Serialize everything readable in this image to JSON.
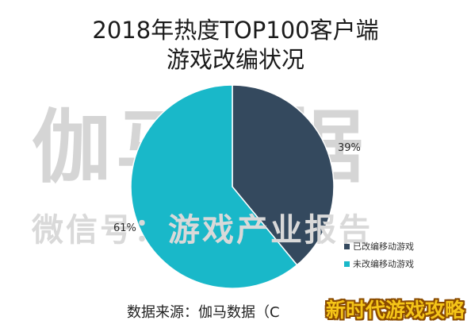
{
  "chart_data": {
    "type": "pie",
    "title_lines": [
      "2018年热度TOP100客户端",
      "游戏改编状况"
    ],
    "slices": [
      {
        "name": "已改编移动游戏",
        "value": 39,
        "label": "39%",
        "color": "#34495e"
      },
      {
        "name": "未改编移动游戏",
        "value": 61,
        "label": "61%",
        "color": "#19b8c9"
      }
    ],
    "start_angle_deg": 0,
    "direction": "clockwise",
    "legend_position": "bottom-right"
  },
  "watermarks": {
    "brand": "伽马数据",
    "account": "微信号：游戏产业报告"
  },
  "source": "数据来源：伽马数据（C",
  "overlay": "新时代游戏攻略"
}
